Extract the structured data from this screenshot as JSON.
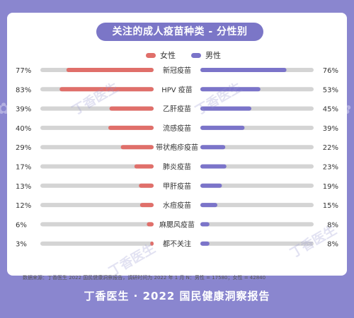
{
  "title": "关注的成人疫苗种类 - 分性别",
  "legend": {
    "female": "女性",
    "male": "男性"
  },
  "source": "数据来源：丁香医生 2022 国民健康洞察报告，调研时间为 2022 年 1 月 N：男性 = 17580；女性 = 42840",
  "footer": "丁香医生 · 2022 国民健康洞察报告",
  "watermark": "丁香医生",
  "colors": {
    "female": "#e06f6a",
    "male": "#7b74c9",
    "track": "#d4d4d4",
    "frame": "#8a86cf"
  },
  "chart_data": {
    "type": "bar",
    "title": "关注的成人疫苗种类 - 分性别",
    "categories": [
      "新冠疫苗",
      "HPV 疫苗",
      "乙肝疫苗",
      "流感疫苗",
      "带状疱疹疫苗",
      "肺炎疫苗",
      "甲肝疫苗",
      "水痘疫苗",
      "麻腮风疫苗",
      "都不关注"
    ],
    "series": [
      {
        "name": "女性",
        "values": [
          77,
          83,
          39,
          40,
          29,
          17,
          13,
          12,
          6,
          3
        ]
      },
      {
        "name": "男性",
        "values": [
          76,
          53,
          45,
          39,
          22,
          23,
          19,
          15,
          8,
          8
        ]
      }
    ],
    "value_suffix": "%",
    "xlim": [
      0,
      100
    ],
    "legend_position": "top-center"
  }
}
